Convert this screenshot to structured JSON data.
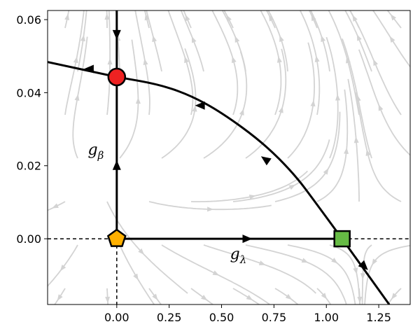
{
  "chart_data": {
    "type": "line",
    "title": "",
    "xlabel": "",
    "ylabel": "",
    "xlim": [
      -0.33,
      1.4
    ],
    "ylim": [
      -0.018,
      0.0625
    ],
    "grid": false,
    "x_ticks": [
      {
        "value": 0.0,
        "label": "0.00"
      },
      {
        "value": 0.25,
        "label": "0.25"
      },
      {
        "value": 0.5,
        "label": "0.50"
      },
      {
        "value": 0.75,
        "label": "0.75"
      },
      {
        "value": 1.0,
        "label": "1.00"
      },
      {
        "value": 1.25,
        "label": "1.25"
      }
    ],
    "y_ticks": [
      {
        "value": 0.0,
        "label": "0.00"
      },
      {
        "value": 0.02,
        "label": "0.02"
      },
      {
        "value": 0.04,
        "label": "0.04"
      },
      {
        "value": 0.06,
        "label": "0.06"
      }
    ],
    "annotations": [
      {
        "base": "g",
        "sub": "β",
        "x": -0.1,
        "y": 0.023
      },
      {
        "base": "g",
        "sub": "λ",
        "x": 0.58,
        "y": -0.0055
      }
    ],
    "fixed_points": [
      {
        "shape": "pentagon",
        "color": "#ffb000",
        "x": 0.0,
        "y": 0.0
      },
      {
        "shape": "circle",
        "color": "#ee2222",
        "x": 0.0,
        "y": 0.0443
      },
      {
        "shape": "square",
        "color": "#66bb44",
        "x": 1.075,
        "y": 0.0
      }
    ],
    "separatrices": [
      {
        "style": "solid",
        "points": [
          [
            0.0,
            0.063
          ],
          [
            0.0,
            0.0443
          ]
        ],
        "arrows": [
          {
            "x": 0.0,
            "y": 0.056,
            "dir": "down"
          }
        ]
      },
      {
        "style": "solid",
        "points": [
          [
            0.0,
            0.0
          ],
          [
            0.0,
            0.0443
          ]
        ],
        "arrows": [
          {
            "x": 0.0,
            "y": 0.02,
            "dir": "up"
          }
        ]
      },
      {
        "style": "solid",
        "points": [
          [
            0.0,
            0.0443
          ],
          [
            -0.33,
            0.0484
          ]
        ],
        "arrows": [
          {
            "x": -0.13,
            "y": 0.0465,
            "dir": "left"
          }
        ]
      },
      {
        "style": "solid",
        "points": [
          [
            0.0,
            0.0
          ],
          [
            1.075,
            0.0
          ]
        ],
        "arrows": [
          {
            "x": 0.62,
            "y": 0.0,
            "dir": "right"
          }
        ]
      },
      {
        "style": "solid",
        "points": [
          [
            1.075,
            0.0
          ],
          [
            0.95,
            0.0098
          ],
          [
            0.85,
            0.0175
          ],
          [
            0.7,
            0.0262
          ],
          [
            0.5,
            0.0346
          ],
          [
            0.35,
            0.0393
          ],
          [
            0.2,
            0.0423
          ],
          [
            0.0,
            0.0443
          ]
        ],
        "arrows": [
          {
            "x": 0.71,
            "y": 0.0217,
            "dir": "upleft"
          },
          {
            "x": 0.4,
            "y": 0.0365,
            "dir": "left"
          }
        ]
      },
      {
        "style": "solid",
        "points": [
          [
            1.075,
            0.0
          ],
          [
            1.3,
            -0.018
          ]
        ],
        "arrows": [
          {
            "x": 1.18,
            "y": -0.0075,
            "dir": "downright"
          }
        ]
      },
      {
        "style": "dashed",
        "points": [
          [
            -0.33,
            0.0
          ],
          [
            0.0,
            0.0
          ]
        ]
      },
      {
        "style": "dashed",
        "points": [
          [
            0.0,
            0.0
          ],
          [
            0.0,
            -0.018
          ]
        ]
      },
      {
        "style": "dashed",
        "points": [
          [
            1.075,
            0.0
          ],
          [
            1.4,
            0.0
          ]
        ]
      }
    ]
  }
}
